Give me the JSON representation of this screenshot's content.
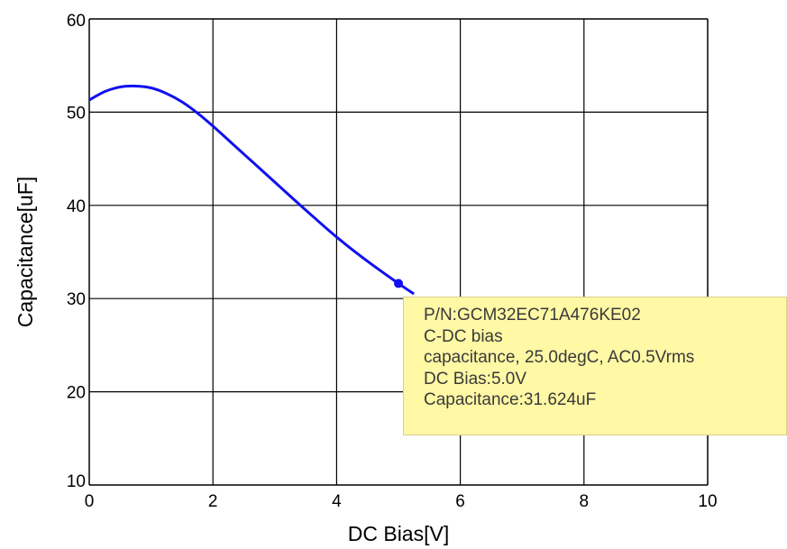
{
  "chart_data": {
    "type": "line",
    "xlabel": "DC Bias[V]",
    "ylabel": "Capacitance[uF]",
    "xlim": [
      0,
      10
    ],
    "ylim": [
      10,
      60
    ],
    "x_ticks": [
      "0",
      "2",
      "4",
      "6",
      "8",
      "10"
    ],
    "y_ticks": [
      "60",
      "50",
      "40",
      "30",
      "20",
      "10"
    ],
    "x_tick_values": [
      0,
      2,
      4,
      6,
      8,
      10
    ],
    "y_tick_values": [
      60,
      50,
      40,
      30,
      20,
      10
    ],
    "grid": true,
    "line_color": "#1010f0",
    "series": [
      {
        "x": [
          0,
          0.25,
          0.5,
          0.75,
          1.0,
          1.25,
          1.5,
          1.75,
          2.0,
          2.5,
          3.0,
          3.5,
          4.0,
          4.5,
          5.0,
          5.25
        ],
        "y": [
          51.3,
          52.2,
          52.7,
          52.8,
          52.6,
          52.0,
          51.1,
          49.9,
          48.5,
          45.5,
          42.5,
          39.5,
          36.6,
          34.0,
          31.62,
          30.5
        ]
      }
    ],
    "marker": {
      "x": 5.0,
      "y": 31.624
    }
  },
  "tooltip": {
    "bg_color": "#fff8a5",
    "lines": [
      "P/N:GCM32EC71A476KE02",
      "C-DC bias",
      "capacitance, 25.0degC, AC0.5Vrms",
      "DC Bias:5.0V",
      "Capacitance:31.624uF"
    ]
  }
}
